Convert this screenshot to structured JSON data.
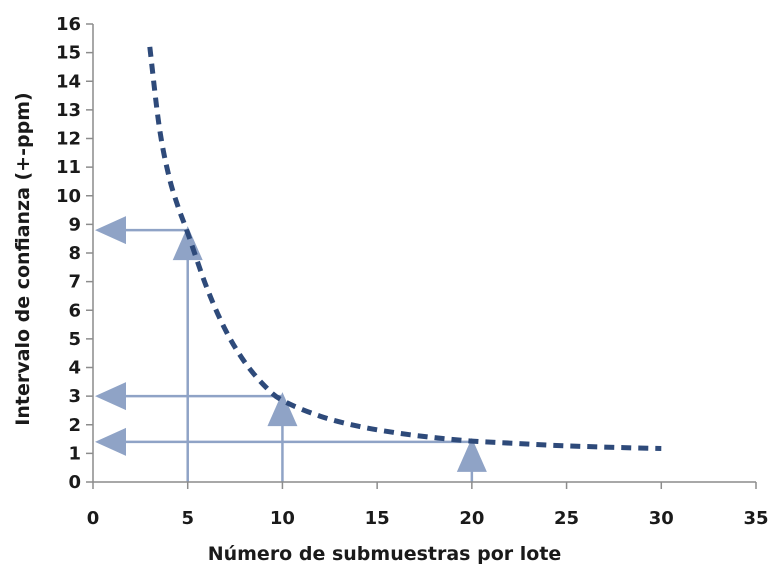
{
  "chart_data": {
    "type": "line",
    "title": "",
    "xlabel": "Número de submuestras por lote",
    "ylabel": "Intervalo de confianza (+-ppm)",
    "xlim": [
      0,
      35
    ],
    "ylim": [
      0,
      16
    ],
    "x_ticks": [
      "0",
      "5",
      "10",
      "15",
      "20",
      "25",
      "30",
      "35"
    ],
    "y_ticks": [
      "0",
      "1",
      "2",
      "3",
      "4",
      "5",
      "6",
      "7",
      "8",
      "9",
      "10",
      "11",
      "12",
      "13",
      "14",
      "15",
      "16"
    ],
    "grid": false,
    "legend": "none",
    "series": [
      {
        "style": "dashed",
        "color": "#2e4a7a",
        "x": [
          3.0,
          3.5,
          4.0,
          4.5,
          5.0,
          6.0,
          7.0,
          8.0,
          9.0,
          10.0,
          12.0,
          14.0,
          16.0,
          18.0,
          20.0,
          22.0,
          24.0,
          26.0,
          28.0,
          30.0
        ],
        "y": [
          15.2,
          12.4,
          10.7,
          9.6,
          8.7,
          6.8,
          5.3,
          4.2,
          3.4,
          2.85,
          2.3,
          1.95,
          1.72,
          1.55,
          1.43,
          1.36,
          1.29,
          1.24,
          1.2,
          1.17
        ]
      }
    ],
    "annotations": [
      {
        "type": "arrow-pair",
        "x": 5,
        "y": 8.8,
        "color": "#8fa3c6"
      },
      {
        "type": "arrow-pair",
        "x": 10,
        "y": 3.0,
        "color": "#8fa3c6"
      },
      {
        "type": "arrow-pair",
        "x": 20,
        "y": 1.4,
        "color": "#8fa3c6"
      }
    ]
  }
}
